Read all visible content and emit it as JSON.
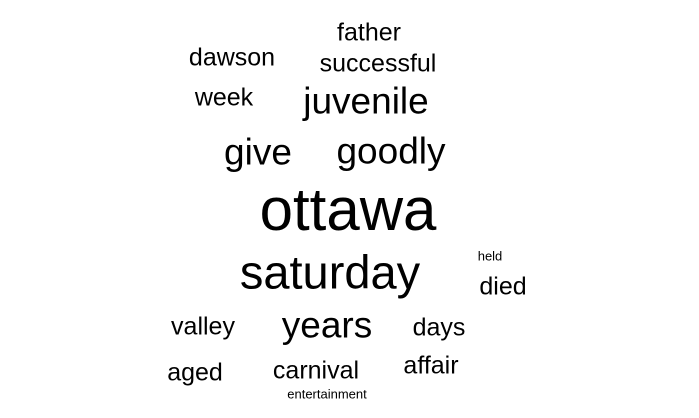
{
  "word_cloud": {
    "text_color": "#000000",
    "background": "#ffffff",
    "words": [
      {
        "text": "father"
      },
      {
        "text": "dawson"
      },
      {
        "text": "successful"
      },
      {
        "text": "week"
      },
      {
        "text": "juvenile"
      },
      {
        "text": "give"
      },
      {
        "text": "goodly"
      },
      {
        "text": "ottawa"
      },
      {
        "text": "saturday"
      },
      {
        "text": "held"
      },
      {
        "text": "died"
      },
      {
        "text": "valley"
      },
      {
        "text": "years"
      },
      {
        "text": "days"
      },
      {
        "text": "affair"
      },
      {
        "text": "aged"
      },
      {
        "text": "carnival"
      },
      {
        "text": "entertainment"
      }
    ]
  }
}
